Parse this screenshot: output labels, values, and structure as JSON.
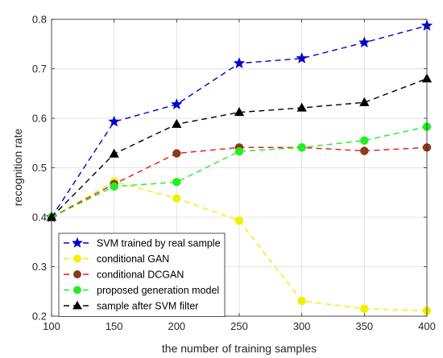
{
  "chart_data": {
    "type": "line",
    "xlabel": "the number of training samples",
    "ylabel": "recognition rate",
    "xlim": [
      100,
      400
    ],
    "ylim": [
      0.2,
      0.8
    ],
    "x": [
      100,
      150,
      200,
      250,
      300,
      350,
      400
    ],
    "xticks": [
      "100",
      "150",
      "200",
      "250",
      "300",
      "350",
      "400"
    ],
    "yticks": [
      "0.2",
      "0.3",
      "0.4",
      "0.5",
      "0.6",
      "0.7",
      "0.8"
    ],
    "grid": true,
    "legend_position": "bottom-left",
    "series": [
      {
        "name": "SVM trained by real sample",
        "color": "#0000cc",
        "marker": "star",
        "values": [
          0.4,
          0.593,
          0.628,
          0.711,
          0.721,
          0.753,
          0.787
        ]
      },
      {
        "name": "conditional GAN",
        "color": "#f0f000",
        "marker": "circle",
        "values": [
          0.4,
          0.472,
          0.438,
          0.393,
          0.231,
          0.215,
          0.211
        ]
      },
      {
        "name": "conditional DCGAN",
        "color": "#e8141a",
        "marker_color": "#8b3a1a",
        "marker": "circle",
        "values": [
          0.4,
          0.467,
          0.529,
          0.541,
          0.541,
          0.534,
          0.541
        ]
      },
      {
        "name": "proposed generation model",
        "color": "#22ee22",
        "marker": "circle",
        "values": [
          0.4,
          0.462,
          0.471,
          0.533,
          0.541,
          0.555,
          0.583
        ]
      },
      {
        "name": "sample after SVM filter",
        "color": "#000000",
        "marker": "triangle",
        "values": [
          0.4,
          0.528,
          0.588,
          0.612,
          0.621,
          0.632,
          0.68
        ]
      }
    ]
  }
}
